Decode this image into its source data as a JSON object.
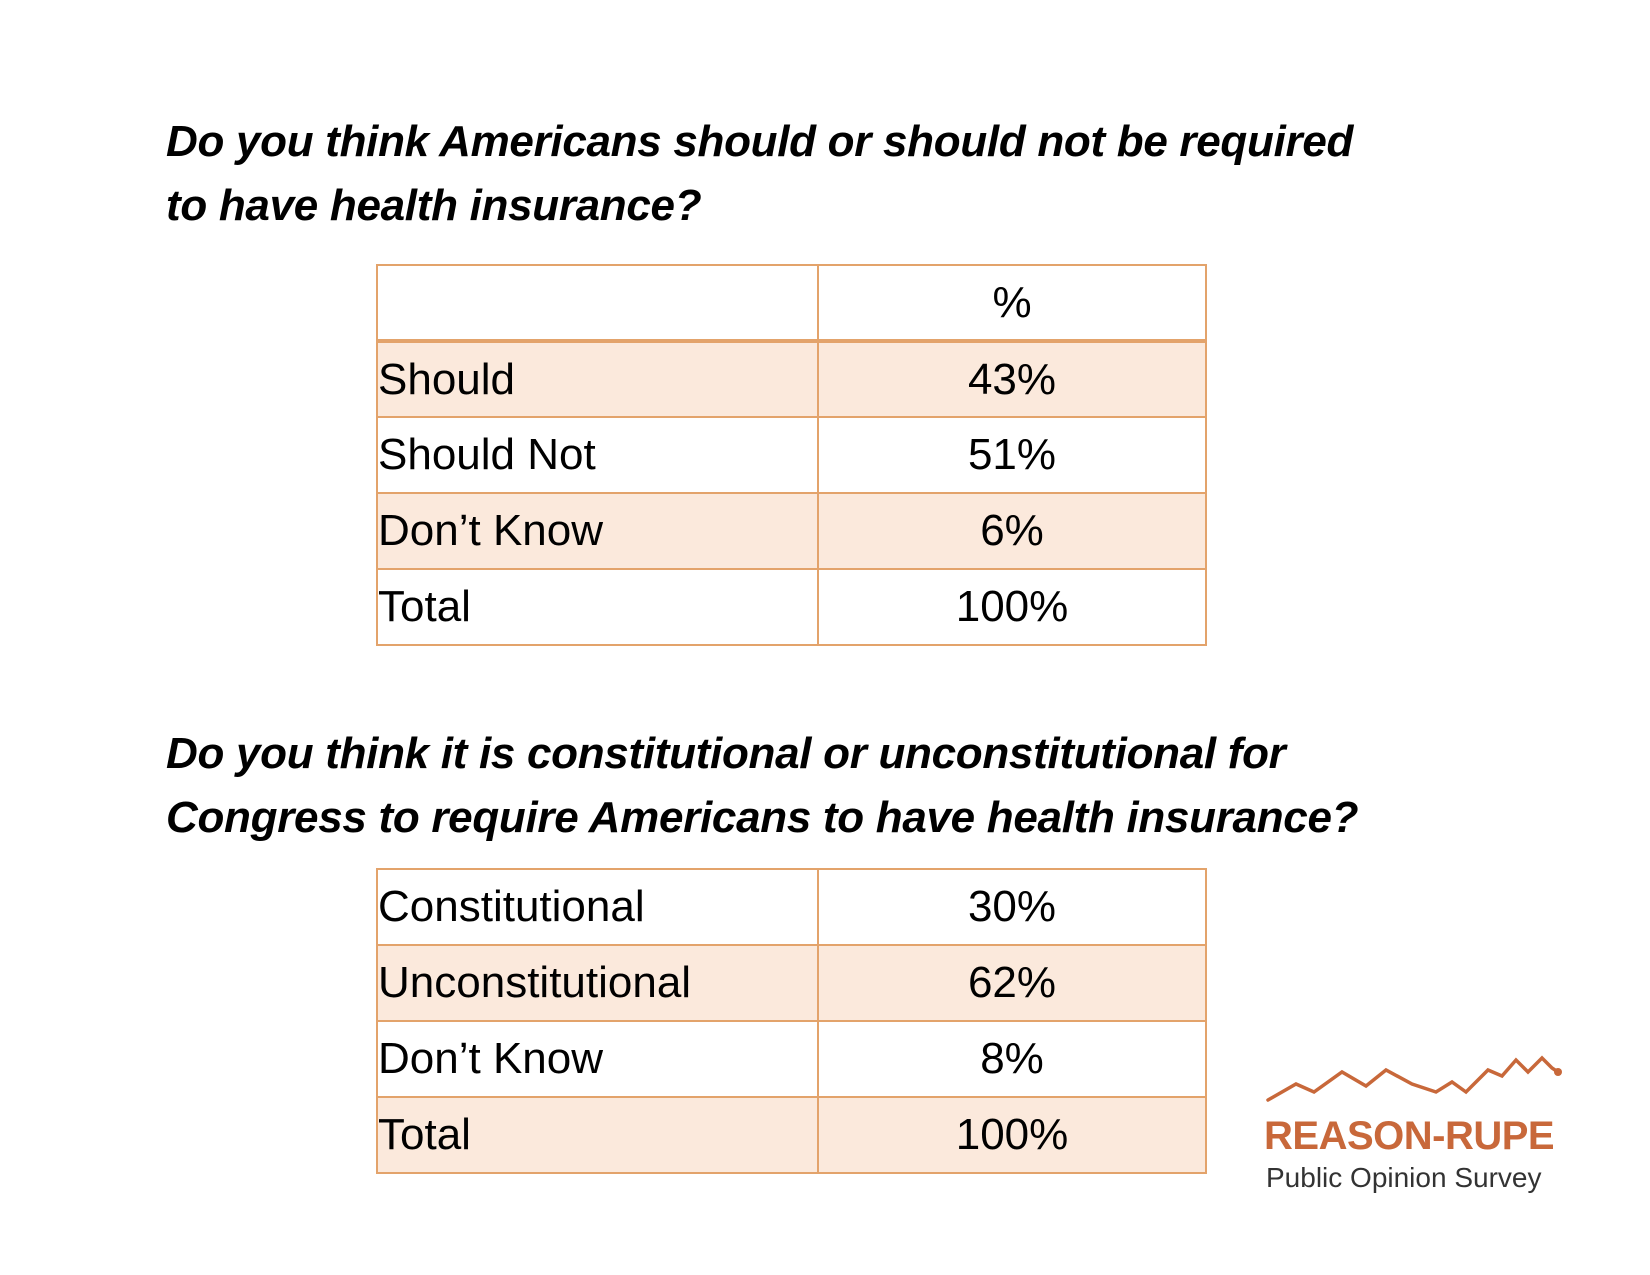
{
  "colors": {
    "border": "#e3a36b",
    "shade": "#fbe9dc",
    "brand": "#c8683a",
    "text": "#000000"
  },
  "question1": {
    "line1": "Do you think Americans should or should not be required",
    "line2": "to have health insurance?",
    "header": "%",
    "rows": [
      {
        "label": "Should",
        "value": "43%"
      },
      {
        "label": "Should Not",
        "value": "51%"
      },
      {
        "label": "Don’t Know",
        "value": "6%"
      },
      {
        "label": "Total",
        "value": "100%"
      }
    ]
  },
  "question2": {
    "line1": "Do you think it is constitutional or unconstitutional for",
    "line2": "Congress to require Americans to have health insurance?",
    "rows": [
      {
        "label": "Constitutional",
        "value": "30%"
      },
      {
        "label": "Unconstitutional",
        "value": "62%"
      },
      {
        "label": "Don’t Know",
        "value": "8%"
      },
      {
        "label": "Total",
        "value": "100%"
      }
    ]
  },
  "logo": {
    "icon": "mountain-line-chart-icon",
    "brand": "REASON-RUPE",
    "subtitle": "Public Opinion Survey"
  }
}
